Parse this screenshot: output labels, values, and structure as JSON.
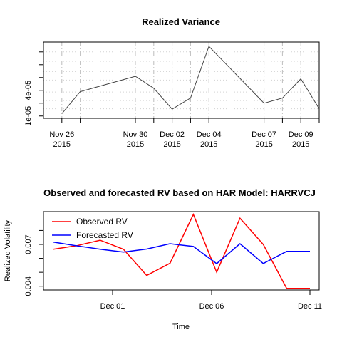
{
  "chart_data": [
    {
      "type": "line",
      "title": "Realized Variance",
      "xlabel": "",
      "ylabel": "",
      "x": [
        "2015-11-26",
        "2015-11-27",
        "2015-11-30",
        "2015-12-01",
        "2015-12-02",
        "2015-12-03",
        "2015-12-04",
        "2015-12-07",
        "2015-12-08",
        "2015-12-09",
        "2015-12-10"
      ],
      "series": [
        {
          "values": [
            1.28e-05,
            3.85e-05,
            5.65e-05,
            4.25e-05,
            1.8e-05,
            3.1e-05,
            9.15e-05,
            2.5e-05,
            3.1e-05,
            5.35e-05,
            1.85e-05
          ],
          "color": "#444444"
        }
      ],
      "yticks": [
        1e-05,
        4e-05
      ],
      "ytick_labels": [
        "1e-05",
        "4e-05"
      ],
      "ylim": [
        7.3e-06,
        9.65e-05
      ],
      "xtick_dates": [
        "2015-11-26",
        "2015-11-30",
        "2015-12-02",
        "2015-12-04",
        "2015-12-07",
        "2015-12-09"
      ],
      "xtick_labels_top": [
        "Nov 26",
        "Nov 30",
        "Dec 02",
        "Dec 04",
        "Dec 07",
        "Dec 09"
      ],
      "xtick_labels_bottom": [
        "2015",
        "2015",
        "2015",
        "2015",
        "2015",
        "2015"
      ],
      "xlim": [
        "2015-11-25",
        "2015-12-10"
      ],
      "grid": "dashed",
      "hgrid_values": [
        1.85e-05,
        2.8e-05,
        3.8e-05,
        5.2e-05,
        6.2e-05,
        7.4e-05,
        8.5e-05
      ],
      "vgrid_dates": [
        "2015-11-26",
        "2015-11-27",
        "2015-11-30",
        "2015-12-01",
        "2015-12-02",
        "2015-12-03",
        "2015-12-04",
        "2015-12-07",
        "2015-12-08",
        "2015-12-09",
        "2015-12-10"
      ]
    },
    {
      "type": "line",
      "title": "Observed and forecasted RV based on HAR Model: HARRVCJ",
      "xlabel": "Time",
      "ylabel": "Realized Volatility",
      "x": [
        "2015-11-26",
        "2015-11-27",
        "2015-11-30",
        "2015-12-01",
        "2015-12-02",
        "2015-12-03",
        "2015-12-04",
        "2015-12-07",
        "2015-12-08",
        "2015-12-09",
        "2015-12-10",
        "2015-12-11"
      ],
      "series": [
        {
          "name": "Observed RV",
          "color": "#ff0000",
          "values": [
            0.00665,
            0.00691,
            0.0073,
            0.00665,
            0.00477,
            0.00565,
            0.00915,
            0.005,
            0.00888,
            0.007,
            0.00385,
            0.00385
          ]
        },
        {
          "name": "Forecasted RV",
          "color": "#0000ff",
          "values": [
            0.00717,
            0.0069,
            0.00666,
            0.00645,
            0.00667,
            0.00705,
            0.00685,
            0.00562,
            0.00705,
            0.00563,
            0.0065,
            0.0065
          ]
        }
      ],
      "plot_x": [
        "2015-11-26",
        "2015-11-27",
        "2015-11-30",
        "2015-12-01",
        "2015-12-02",
        "2015-12-03",
        "2015-12-04",
        "2015-12-07",
        "2015-12-08",
        "2015-12-09",
        "2015-12-10"
      ],
      "yticks": [
        0.004,
        0.007
      ],
      "ytick_labels": [
        "0.004",
        "0.007"
      ],
      "ylim": [
        0.00373,
        0.00935
      ],
      "xtick_dates": [
        "2015-12-01",
        "2015-12-06",
        "2015-12-11"
      ],
      "xtick_labels": [
        "Dec 01",
        "Dec 06",
        "Dec 11"
      ],
      "xlim": [
        "2015-11-25",
        "2015-12-11"
      ],
      "legend": "top-left"
    }
  ]
}
